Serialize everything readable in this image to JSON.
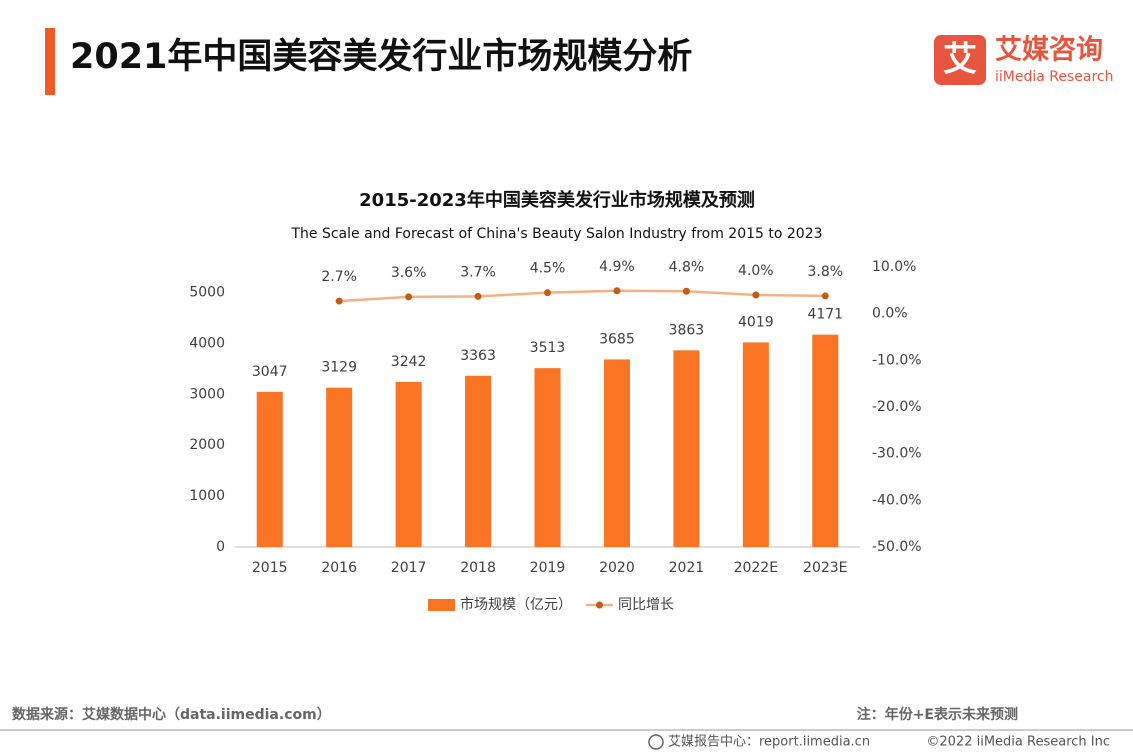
{
  "header": {
    "title": "2021年中国美容美发行业市场规模分析"
  },
  "logo": {
    "icon": "艾",
    "name": "艾媒咨询",
    "sub": "iiMedia Research"
  },
  "chart_data": {
    "type": "combo",
    "title": "2015-2023年中国美容美发行业市场规模及预测",
    "subtitle": "The Scale and Forecast of China's Beauty Salon Industry from 2015 to 2023",
    "categories": [
      "2015",
      "2016",
      "2017",
      "2018",
      "2019",
      "2020",
      "2021",
      "2022E",
      "2023E"
    ],
    "series": [
      {
        "name": "市场规模（亿元）",
        "type": "bar",
        "color": "#f97523",
        "values": [
          3047,
          3129,
          3242,
          3363,
          3513,
          3685,
          3863,
          4019,
          4171
        ]
      },
      {
        "name": "同比增长",
        "type": "line",
        "axis": "y2",
        "color": "#f4b183",
        "marker_color": "#c55a11",
        "values": [
          null,
          2.7,
          3.6,
          3.7,
          4.5,
          4.9,
          4.8,
          4.0,
          3.8
        ],
        "value_labels": [
          null,
          "2.7%",
          "3.6%",
          "3.7%",
          "4.5%",
          "4.9%",
          "4.8%",
          "4.0%",
          "3.8%"
        ]
      }
    ],
    "ylim": [
      0,
      5500
    ],
    "yticks": [
      0,
      1000,
      2000,
      3000,
      4000,
      5000
    ],
    "y2lim": [
      -50,
      10
    ],
    "y2ticks": [
      {
        "value": -50,
        "label": "-50.0%"
      },
      {
        "value": -40,
        "label": "-40.0%"
      },
      {
        "value": -30,
        "label": "-30.0%"
      },
      {
        "value": -20,
        "label": "-20.0%"
      },
      {
        "value": -10,
        "label": "-10.0%"
      },
      {
        "value": 0,
        "label": "0.0%"
      },
      {
        "value": 10,
        "label": "10.0%"
      }
    ],
    "grid": false,
    "legend": "bottom"
  },
  "footer": {
    "source": "数据来源：艾媒数据中心（data.iimedia.com）",
    "note": "注：年份+E表示未来预测",
    "report": "艾媒报告中心：report.iimedia.cn",
    "copyright": "©2022  iiMedia Research  Inc"
  }
}
